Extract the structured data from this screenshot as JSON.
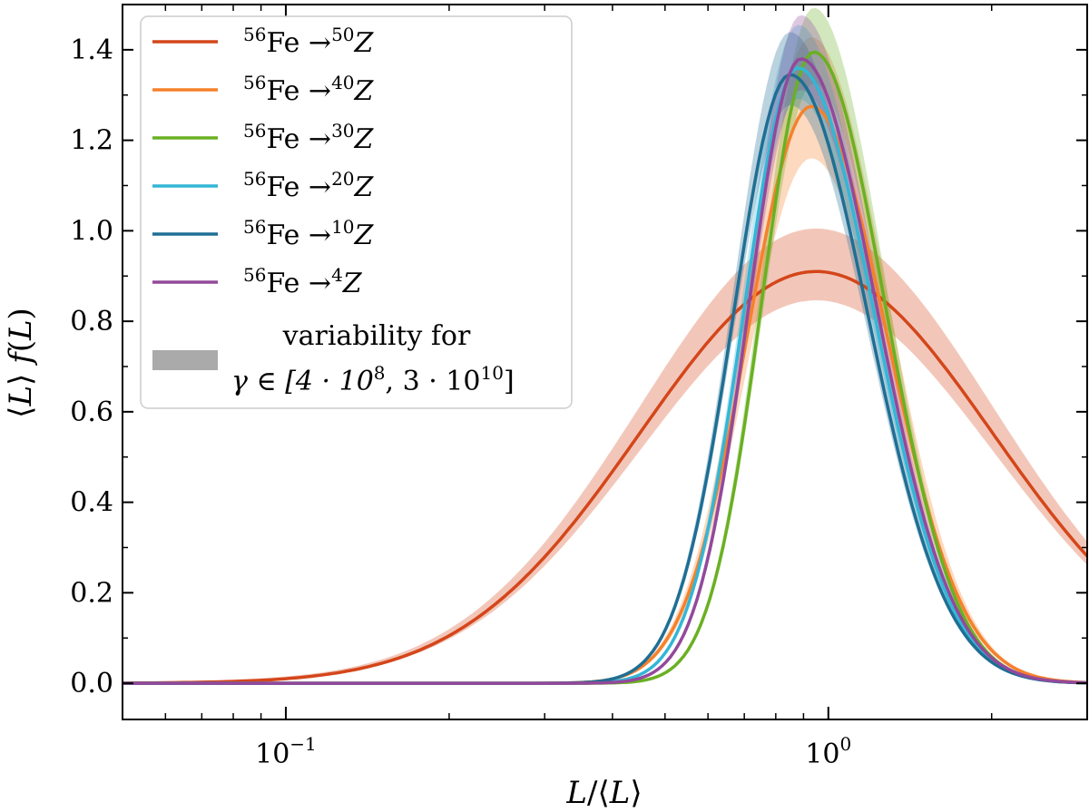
{
  "chart_data": {
    "type": "line",
    "xscale": "log",
    "xlim": [
      0.05,
      3.0
    ],
    "ylim": [
      -0.08,
      1.5
    ],
    "xlabel": "L/⟨L⟩",
    "ylabel": "⟨L⟩ f(L)",
    "xticks": [
      {
        "value": 0.1,
        "base": "10",
        "exp": "−1"
      },
      {
        "value": 1.0,
        "base": "10",
        "exp": "0"
      }
    ],
    "yticks": [
      {
        "value": 0.0,
        "label": "0.0"
      },
      {
        "value": 0.2,
        "label": "0.2"
      },
      {
        "value": 0.4,
        "label": "0.4"
      },
      {
        "value": 0.6,
        "label": "0.6"
      },
      {
        "value": 0.8,
        "label": "0.8"
      },
      {
        "value": 1.0,
        "label": "1.0"
      },
      {
        "value": 1.2,
        "label": "1.2"
      },
      {
        "value": 1.4,
        "label": "1.4"
      }
    ],
    "legend_position": "top-left",
    "series": [
      {
        "name": "56Fe → 50Z",
        "mass_from": "56",
        "element": "Fe",
        "mass_to": "50",
        "color": "#d4461a",
        "model": {
          "kind": "lognormal",
          "x0": 0.95,
          "s": 0.75,
          "amp": 0.91
        },
        "band": [
          0.07,
          0.1
        ]
      },
      {
        "name": "56Fe → 40Z",
        "mass_from": "56",
        "element": "Fe",
        "mass_to": "40",
        "color": "#f5812c",
        "model": {
          "kind": "skew",
          "mode": 0.93,
          "sl": 0.27,
          "sr": 0.32,
          "amp": 1.275
        },
        "band": [
          0.09,
          0.12
        ]
      },
      {
        "name": "56Fe → 30Z",
        "mass_from": "56",
        "element": "Fe",
        "mass_to": "30",
        "color": "#6ab023",
        "model": {
          "kind": "skew",
          "mode": 0.94,
          "sl": 0.22,
          "sr": 0.3,
          "amp": 1.395
        },
        "band": [
          0.05,
          0.07
        ]
      },
      {
        "name": "56Fe → 20Z",
        "mass_from": "56",
        "element": "Fe",
        "mass_to": "20",
        "color": "#33b6d6",
        "model": {
          "kind": "skew",
          "mode": 0.88,
          "sl": 0.23,
          "sr": 0.32,
          "amp": 1.36
        },
        "band": [
          0.05,
          0.07
        ]
      },
      {
        "name": "56Fe → 10Z",
        "mass_from": "56",
        "element": "Fe",
        "mass_to": "10",
        "color": "#1f6e94",
        "model": {
          "kind": "skew",
          "mode": 0.85,
          "sl": 0.24,
          "sr": 0.33,
          "amp": 1.345
        },
        "band": [
          0.05,
          0.07
        ]
      },
      {
        "name": "56Fe → 4Z",
        "mass_from": "56",
        "element": "Fe",
        "mass_to": "4",
        "color": "#93499b",
        "model": {
          "kind": "skew",
          "mode": 0.89,
          "sl": 0.22,
          "sr": 0.32,
          "amp": 1.38
        },
        "band": [
          0.05,
          0.07
        ]
      }
    ],
    "band_legend": {
      "line1": "variability for",
      "line2_prefix": "γ ∈ [4 · 10",
      "exp1": "8",
      "line2_mid": ", 3 · 10",
      "exp2": "10",
      "line2_suffix": "]",
      "color": "#aaaaaa"
    }
  }
}
